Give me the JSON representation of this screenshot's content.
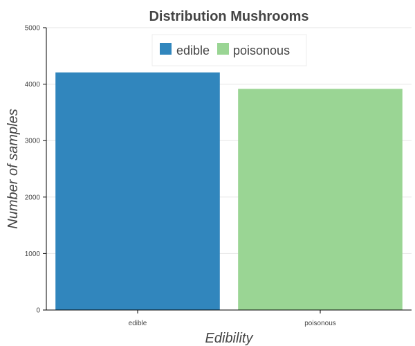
{
  "chart_data": {
    "type": "bar",
    "title": "Distribution Mushrooms",
    "xlabel": "Edibility",
    "ylabel": "Number of samples",
    "categories": [
      "edible",
      "poisonous"
    ],
    "values": [
      4208,
      3916
    ],
    "ylim": [
      0,
      5000
    ],
    "yticks": [
      0,
      1000,
      2000,
      3000,
      4000,
      5000
    ],
    "grid": true,
    "legend": {
      "position": "top-center",
      "entries": [
        "edible",
        "poisonous"
      ]
    },
    "colors": [
      "#3186bd",
      "#9ad594"
    ]
  },
  "colors": {
    "axis": "#000000",
    "grid": "#e5e5e5",
    "text": "#444444"
  }
}
